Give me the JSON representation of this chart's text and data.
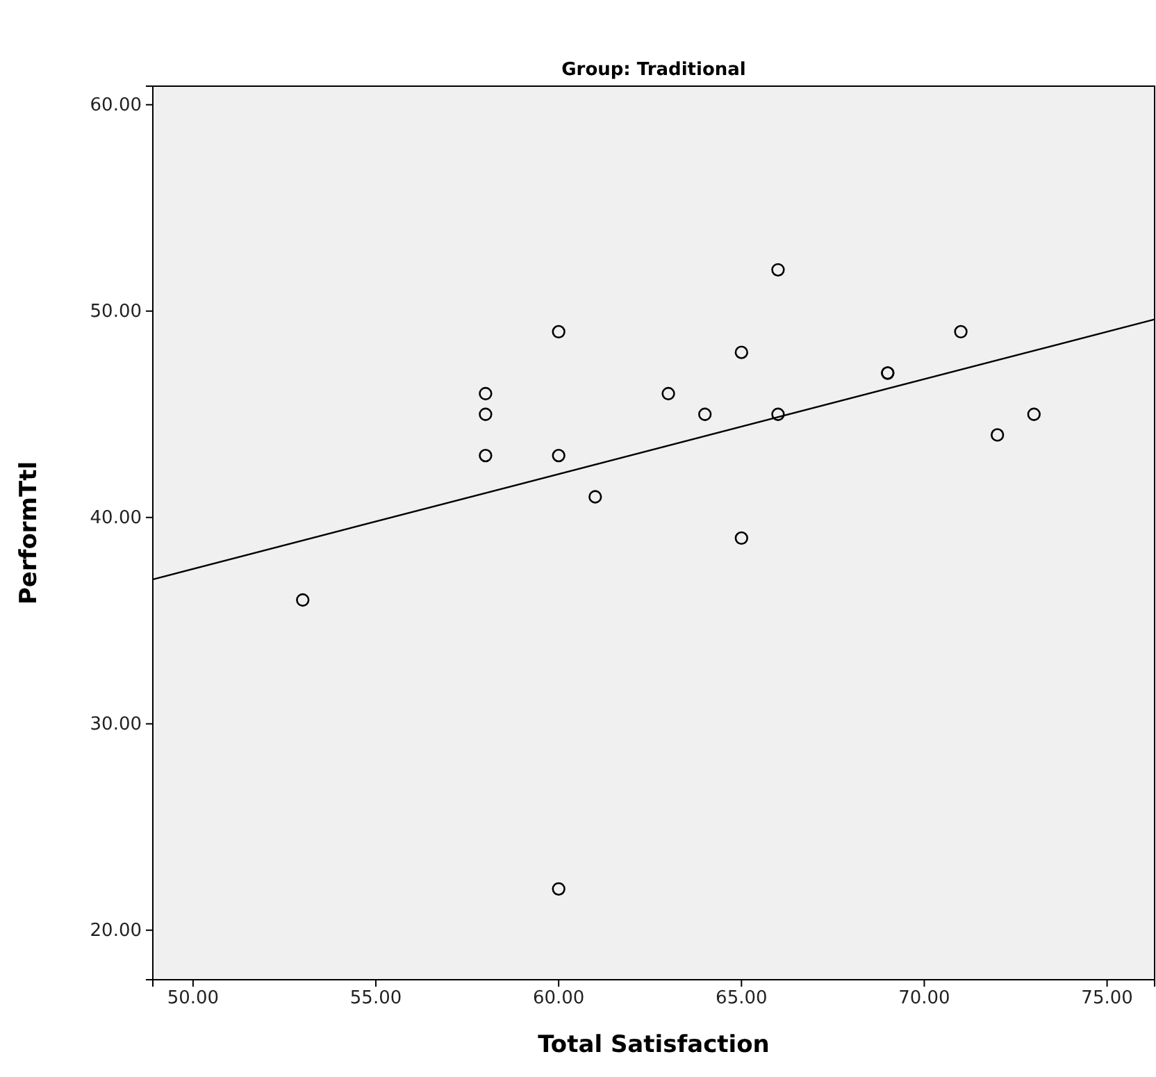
{
  "chart_data": {
    "type": "scatter",
    "title": "Group: Traditional",
    "xlabel": "Total Satisfaction",
    "ylabel": "PerformTtl",
    "xlim": [
      48.9,
      76.3
    ],
    "ylim": [
      17.6,
      60.9
    ],
    "xticks": [
      {
        "value": 50,
        "label": "50.00"
      },
      {
        "value": 55,
        "label": "55.00"
      },
      {
        "value": 60,
        "label": "60.00"
      },
      {
        "value": 65,
        "label": "65.00"
      },
      {
        "value": 70,
        "label": "70.00"
      },
      {
        "value": 75,
        "label": "75.00"
      }
    ],
    "yticks": [
      {
        "value": 20,
        "label": "20.00"
      },
      {
        "value": 30,
        "label": "30.00"
      },
      {
        "value": 40,
        "label": "40.00"
      },
      {
        "value": 50,
        "label": "50.00"
      },
      {
        "value": 60,
        "label": "60.00"
      }
    ],
    "grid": false,
    "marker": "circle",
    "series": [
      {
        "color": "#000000",
        "x": [
          53,
          58,
          58,
          58,
          60,
          60,
          60,
          61,
          63,
          64,
          65,
          65,
          66,
          66,
          69,
          69,
          71,
          72,
          73
        ],
        "values": [
          36,
          46,
          45,
          43,
          49,
          43,
          22,
          41,
          46,
          45,
          48,
          39,
          52,
          45,
          47,
          47,
          49,
          44,
          45
        ]
      },
      {
        "type": "line",
        "color": "#000000",
        "marker": "none",
        "line_style": "solid",
        "x": [
          48.9,
          76.3
        ],
        "values": [
          37.0,
          49.6
        ]
      }
    ]
  }
}
